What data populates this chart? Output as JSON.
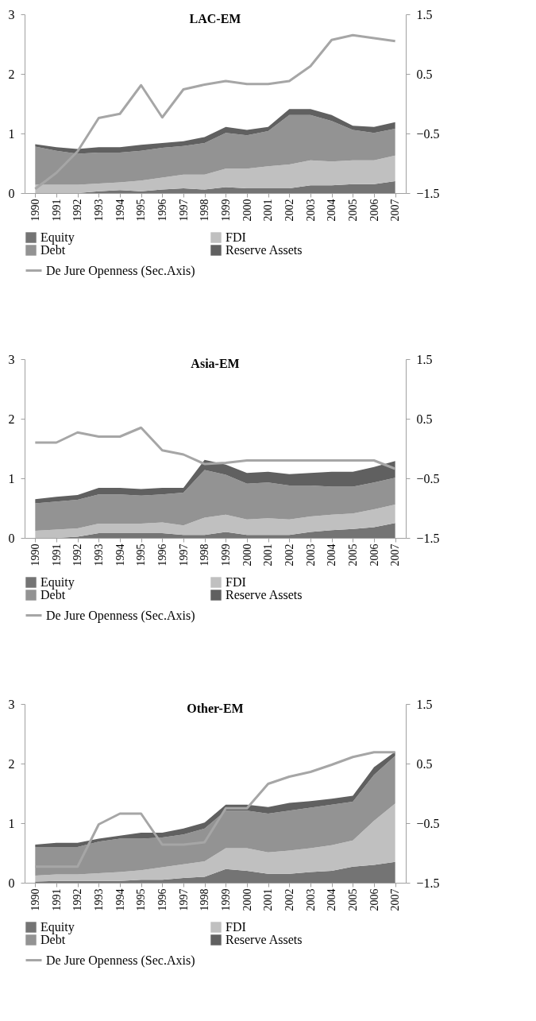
{
  "chart_data": [
    {
      "type": "area",
      "title": "LAC-EM",
      "stacked": true,
      "legend": "bottom",
      "grid": false,
      "categories": [
        "1990",
        "1991",
        "1992",
        "1993",
        "1994",
        "1995",
        "1996",
        "1997",
        "1998",
        "1999",
        "2000",
        "2001",
        "2002",
        "2003",
        "2004",
        "2005",
        "2006",
        "2007"
      ],
      "ylim": [
        0,
        3
      ],
      "yticks": [
        0,
        1,
        2,
        3
      ],
      "y2lim": [
        -1.5,
        1.5
      ],
      "y2ticks": [
        -1.5,
        -0.5,
        0.5,
        1.5
      ],
      "series": [
        {
          "name": "Equity",
          "type": "area",
          "color": "#747474",
          "values": [
            0.0,
            0.0,
            0.0,
            0.03,
            0.05,
            0.03,
            0.06,
            0.08,
            0.06,
            0.1,
            0.08,
            0.08,
            0.08,
            0.13,
            0.13,
            0.15,
            0.15,
            0.2
          ]
        },
        {
          "name": "FDI",
          "type": "area",
          "color": "#c0c0c0",
          "values": [
            0.14,
            0.14,
            0.14,
            0.13,
            0.13,
            0.18,
            0.2,
            0.23,
            0.25,
            0.31,
            0.33,
            0.37,
            0.4,
            0.42,
            0.4,
            0.4,
            0.4,
            0.43
          ]
        },
        {
          "name": "Debt",
          "type": "area",
          "color": "#939393",
          "values": [
            0.64,
            0.57,
            0.52,
            0.52,
            0.5,
            0.5,
            0.5,
            0.48,
            0.53,
            0.6,
            0.56,
            0.59,
            0.83,
            0.76,
            0.68,
            0.51,
            0.46,
            0.45
          ]
        },
        {
          "name": "Reserve Assets",
          "type": "area",
          "color": "#606060",
          "values": [
            0.04,
            0.06,
            0.08,
            0.09,
            0.09,
            0.1,
            0.08,
            0.08,
            0.1,
            0.1,
            0.09,
            0.07,
            0.1,
            0.1,
            0.1,
            0.07,
            0.1,
            0.11
          ]
        },
        {
          "name": "De Jure Openness (Sec.Axis)",
          "type": "line",
          "axis": "y2",
          "color": "#a6a6a6",
          "values": [
            -1.43,
            -1.16,
            -0.8,
            -0.24,
            -0.17,
            0.31,
            -0.23,
            0.24,
            0.32,
            0.38,
            0.33,
            0.33,
            0.38,
            0.63,
            1.07,
            1.15,
            1.1,
            1.05
          ]
        }
      ]
    },
    {
      "type": "area",
      "title": "Asia-EM",
      "stacked": true,
      "legend": "bottom",
      "grid": false,
      "categories": [
        "1990",
        "1991",
        "1992",
        "1993",
        "1994",
        "1995",
        "1996",
        "1997",
        "1998",
        "1999",
        "2000",
        "2001",
        "2002",
        "2003",
        "2004",
        "2005",
        "2006",
        "2007"
      ],
      "ylim": [
        0,
        3
      ],
      "yticks": [
        0,
        1,
        2,
        3
      ],
      "y2lim": [
        -1.5,
        1.5
      ],
      "y2ticks": [
        -1.5,
        -0.5,
        0.5,
        1.5
      ],
      "series": [
        {
          "name": "Equity",
          "type": "area",
          "color": "#747474",
          "values": [
            0,
            0,
            0.02,
            0.08,
            0.08,
            0.08,
            0.08,
            0.05,
            0.05,
            0.1,
            0.05,
            0.05,
            0.05,
            0.1,
            0.13,
            0.15,
            0.18,
            0.25
          ]
        },
        {
          "name": "FDI",
          "type": "area",
          "color": "#c0c0c0",
          "values": [
            0.12,
            0.14,
            0.14,
            0.16,
            0.16,
            0.16,
            0.18,
            0.16,
            0.29,
            0.29,
            0.26,
            0.28,
            0.26,
            0.26,
            0.26,
            0.26,
            0.3,
            0.31
          ]
        },
        {
          "name": "Debt",
          "type": "area",
          "color": "#939393",
          "values": [
            0.46,
            0.47,
            0.48,
            0.49,
            0.49,
            0.47,
            0.47,
            0.55,
            0.8,
            0.67,
            0.6,
            0.6,
            0.57,
            0.52,
            0.47,
            0.45,
            0.45,
            0.45
          ]
        },
        {
          "name": "Reserve Assets",
          "type": "area",
          "color": "#606060",
          "values": [
            0.07,
            0.08,
            0.08,
            0.11,
            0.11,
            0.11,
            0.11,
            0.08,
            0.17,
            0.17,
            0.18,
            0.18,
            0.19,
            0.21,
            0.25,
            0.25,
            0.26,
            0.28
          ]
        },
        {
          "name": "De Jure Openness (Sec.Axis)",
          "type": "line",
          "axis": "y2",
          "color": "#a6a6a6",
          "values": [
            0.1,
            0.1,
            0.27,
            0.2,
            0.2,
            0.35,
            -0.03,
            -0.1,
            -0.26,
            -0.24,
            -0.2,
            -0.2,
            -0.2,
            -0.2,
            -0.2,
            -0.2,
            -0.2,
            -0.34
          ]
        }
      ]
    },
    {
      "type": "area",
      "title": "Other-EM",
      "stacked": true,
      "legend": "bottom",
      "grid": false,
      "categories": [
        "1990",
        "1991",
        "1992",
        "1993",
        "1994",
        "1995",
        "1996",
        "1997",
        "1998",
        "1999",
        "2000",
        "2001",
        "2002",
        "2003",
        "2004",
        "2005",
        "2006",
        "2007"
      ],
      "ylim": [
        0,
        3
      ],
      "yticks": [
        0,
        1,
        2,
        3
      ],
      "y2lim": [
        -1.5,
        1.5
      ],
      "y2ticks": [
        -1.5,
        -0.5,
        0.5,
        1.5
      ],
      "series": [
        {
          "name": "Equity",
          "type": "area",
          "color": "#747474",
          "values": [
            0.02,
            0.03,
            0.03,
            0.03,
            0.03,
            0.05,
            0.05,
            0.08,
            0.1,
            0.23,
            0.2,
            0.15,
            0.15,
            0.18,
            0.2,
            0.27,
            0.3,
            0.35
          ]
        },
        {
          "name": "FDI",
          "type": "area",
          "color": "#c0c0c0",
          "values": [
            0.1,
            0.11,
            0.11,
            0.13,
            0.15,
            0.16,
            0.21,
            0.23,
            0.26,
            0.35,
            0.38,
            0.36,
            0.39,
            0.4,
            0.43,
            0.44,
            0.74,
            0.98
          ]
        },
        {
          "name": "Debt",
          "type": "area",
          "color": "#939393",
          "values": [
            0.48,
            0.46,
            0.46,
            0.53,
            0.56,
            0.53,
            0.5,
            0.5,
            0.55,
            0.63,
            0.63,
            0.65,
            0.67,
            0.68,
            0.68,
            0.65,
            0.77,
            0.8
          ]
        },
        {
          "name": "Reserve Assets",
          "type": "area",
          "color": "#606060",
          "values": [
            0.04,
            0.07,
            0.07,
            0.05,
            0.05,
            0.1,
            0.08,
            0.1,
            0.1,
            0.1,
            0.1,
            0.11,
            0.13,
            0.11,
            0.1,
            0.1,
            0.13,
            0.07
          ]
        },
        {
          "name": "De Jure Openness (Sec.Axis)",
          "type": "line",
          "axis": "y2",
          "color": "#a6a6a6",
          "values": [
            -1.23,
            -1.23,
            -1.23,
            -0.52,
            -0.34,
            -0.34,
            -0.86,
            -0.86,
            -0.82,
            -0.25,
            -0.25,
            0.16,
            0.28,
            0.36,
            0.48,
            0.61,
            0.69,
            0.69
          ]
        }
      ]
    }
  ]
}
